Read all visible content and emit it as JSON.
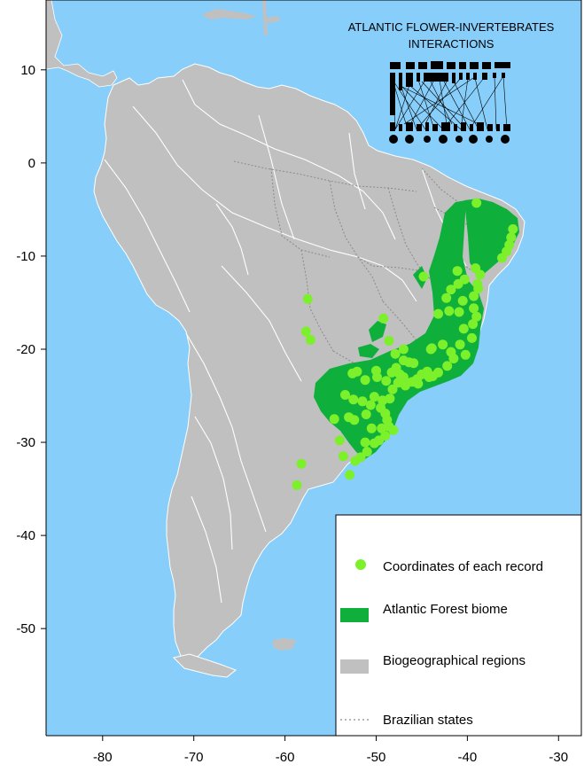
{
  "map": {
    "title_line1": "ATLANTIC FLOWER-INVERTEBRATES",
    "title_line2": "INTERACTIONS",
    "x_ticks": [
      {
        "value": -80,
        "label": "-80"
      },
      {
        "value": -70,
        "label": "-70"
      },
      {
        "value": -60,
        "label": "-60"
      },
      {
        "value": -50,
        "label": "-50"
      },
      {
        "value": -40,
        "label": "-40"
      },
      {
        "value": -30,
        "label": "-30"
      }
    ],
    "y_ticks": [
      {
        "value": 10,
        "label": "10"
      },
      {
        "value": 0,
        "label": "0"
      },
      {
        "value": -10,
        "label": "-10"
      },
      {
        "value": -20,
        "label": "-20"
      },
      {
        "value": -30,
        "label": "-30"
      },
      {
        "value": -40,
        "label": "-40"
      },
      {
        "value": -50,
        "label": "-50"
      }
    ],
    "xlim": [
      -86.2,
      -27.5
    ],
    "ylim": [
      -61.5,
      17.5
    ],
    "colors": {
      "ocean": "#87CEFA",
      "land": "#C0C0C0",
      "atlantic_forest": "#0FAF3C",
      "records": "#7CF02A",
      "region_lines": "#FFFFFF",
      "state_lines": "#8A8A8A"
    },
    "records": [
      [
        -35.0,
        -7.1
      ],
      [
        -35.2,
        -8.0
      ],
      [
        -35.4,
        -8.8
      ],
      [
        -35.7,
        -9.5
      ],
      [
        -36.2,
        -10.2
      ],
      [
        -39.0,
        -4.3
      ],
      [
        -39.1,
        -11.3
      ],
      [
        -38.6,
        -12.0
      ],
      [
        -38.9,
        -13.0
      ],
      [
        -39.3,
        -14.3
      ],
      [
        -38.8,
        -13.5
      ],
      [
        -40.3,
        -12.5
      ],
      [
        -41.0,
        -13.0
      ],
      [
        -41.8,
        -13.6
      ],
      [
        -42.3,
        -14.5
      ],
      [
        -40.5,
        -14.8
      ],
      [
        -39.3,
        -15.6
      ],
      [
        -39.0,
        -16.5
      ],
      [
        -39.4,
        -17.3
      ],
      [
        -40.4,
        -17.8
      ],
      [
        -44.8,
        -12.2
      ],
      [
        -43.2,
        -16.2
      ],
      [
        -42.7,
        -19.5
      ],
      [
        -41.8,
        -20.3
      ],
      [
        -40.2,
        -20.6
      ],
      [
        -41.5,
        -21.0
      ],
      [
        -42.2,
        -21.8
      ],
      [
        -43.2,
        -22.5
      ],
      [
        -43.8,
        -22.9
      ],
      [
        -44.4,
        -22.4
      ],
      [
        -45.0,
        -22.7
      ],
      [
        -45.5,
        -23.2
      ],
      [
        -46.0,
        -23.5
      ],
      [
        -46.6,
        -23.6
      ],
      [
        -47.0,
        -23.0
      ],
      [
        -47.4,
        -22.7
      ],
      [
        -47.8,
        -22.0
      ],
      [
        -48.3,
        -22.5
      ],
      [
        -47.0,
        -21.2
      ],
      [
        -47.9,
        -20.5
      ],
      [
        -45.9,
        -21.5
      ],
      [
        -44.0,
        -20.0
      ],
      [
        -43.9,
        -19.9
      ],
      [
        -48.6,
        -19.1
      ],
      [
        -49.2,
        -16.7
      ],
      [
        -50.0,
        -22.3
      ],
      [
        -51.2,
        -23.3
      ],
      [
        -52.1,
        -22.4
      ],
      [
        -52.6,
        -22.6
      ],
      [
        -53.4,
        -24.9
      ],
      [
        -53.0,
        -27.3
      ],
      [
        -52.4,
        -27.6
      ],
      [
        -51.1,
        -27.0
      ],
      [
        -50.6,
        -26.0
      ],
      [
        -49.5,
        -26.3
      ],
      [
        -49.0,
        -26.9
      ],
      [
        -48.8,
        -27.6
      ],
      [
        -48.6,
        -28.3
      ],
      [
        -49.0,
        -29.3
      ],
      [
        -49.7,
        -29.8
      ],
      [
        -50.2,
        -30.1
      ],
      [
        -51.2,
        -30.0
      ],
      [
        -51.0,
        -31.0
      ],
      [
        -51.7,
        -31.6
      ],
      [
        -52.3,
        -32.0
      ],
      [
        -52.9,
        -33.5
      ],
      [
        -53.6,
        -31.5
      ],
      [
        -54.0,
        -29.8
      ],
      [
        -54.6,
        -27.5
      ],
      [
        -52.5,
        -25.4
      ],
      [
        -48.5,
        -25.3
      ],
      [
        -49.3,
        -25.5
      ],
      [
        -50.2,
        -25.1
      ],
      [
        -51.5,
        -25.6
      ],
      [
        -46.8,
        -23.9
      ],
      [
        -45.4,
        -23.7
      ],
      [
        -44.2,
        -23.0
      ],
      [
        -48.2,
        -24.3
      ],
      [
        -57.5,
        -14.6
      ],
      [
        -57.7,
        -18.1
      ],
      [
        -57.2,
        -19.0
      ],
      [
        -58.2,
        -32.3
      ],
      [
        -58.7,
        -34.6
      ],
      [
        -47.0,
        -20.0
      ],
      [
        -46.4,
        -21.4
      ],
      [
        -47.6,
        -23.6
      ],
      [
        -48.9,
        -23.4
      ],
      [
        -49.9,
        -23.0
      ],
      [
        -40.9,
        -16.0
      ],
      [
        -39.5,
        -18.8
      ],
      [
        -40.8,
        -19.5
      ],
      [
        -41.1,
        -11.6
      ],
      [
        -42.0,
        -15.9
      ],
      [
        -48.1,
        -28.7
      ],
      [
        -49.4,
        -28.5
      ],
      [
        -50.5,
        -28.5
      ]
    ],
    "legend": [
      {
        "symbol": "record",
        "label": "Coordinates of each record"
      },
      {
        "symbol": "biome",
        "label": "Atlantic Forest biome"
      },
      {
        "symbol": "region",
        "label": "Biogeographical regions"
      },
      {
        "symbol": "states",
        "label": "Brazilian states"
      }
    ]
  }
}
